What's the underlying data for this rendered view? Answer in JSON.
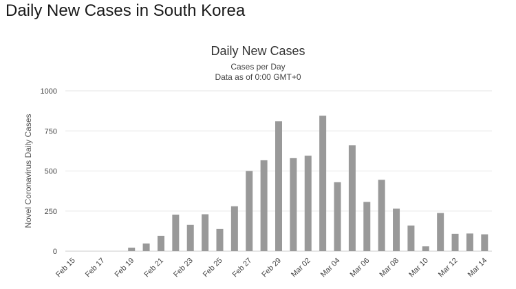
{
  "page": {
    "heading": "Daily New Cases in South Korea"
  },
  "chart_data": {
    "type": "bar",
    "title": "Daily New Cases",
    "subtitle": [
      "Cases per Day",
      "Data as of 0:00 GMT+0"
    ],
    "ylabel": "Novel Coronavirus Daily Cases",
    "xlabel": "",
    "ylim": [
      0,
      1000
    ],
    "yticks": [
      0,
      250,
      500,
      750,
      1000
    ],
    "grid": true,
    "bar_color": "#999999",
    "categories": [
      "Feb 15",
      "Feb 16",
      "Feb 17",
      "Feb 18",
      "Feb 19",
      "Feb 20",
      "Feb 21",
      "Feb 22",
      "Feb 23",
      "Feb 24",
      "Feb 25",
      "Feb 26",
      "Feb 27",
      "Feb 28",
      "Feb 29",
      "Mar 01",
      "Mar 02",
      "Mar 03",
      "Mar 04",
      "Mar 05",
      "Mar 06",
      "Mar 07",
      "Mar 08",
      "Mar 09",
      "Mar 10",
      "Mar 11",
      "Mar 12",
      "Mar 13",
      "Mar 14"
    ],
    "x_tick_labels": [
      "Feb 15",
      "Feb 17",
      "Feb 19",
      "Feb 21",
      "Feb 23",
      "Feb 25",
      "Feb 27",
      "Feb 29",
      "Mar 02",
      "Mar 04",
      "Mar 06",
      "Mar 08",
      "Mar 10",
      "Mar 12",
      "Mar 14"
    ],
    "values": [
      0,
      0,
      0,
      0,
      22,
      48,
      95,
      228,
      164,
      230,
      138,
      280,
      500,
      567,
      810,
      580,
      595,
      845,
      430,
      660,
      307,
      445,
      265,
      160,
      30,
      238,
      108,
      110,
      105
    ]
  }
}
